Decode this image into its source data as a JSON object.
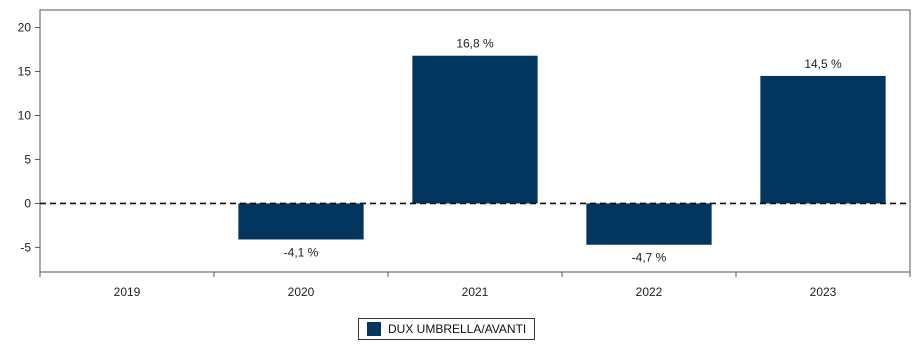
{
  "chart_data": {
    "type": "bar",
    "categories": [
      "2019",
      "2020",
      "2021",
      "2022",
      "2023"
    ],
    "series": [
      {
        "name": "DUX UMBRELLA/AVANTI",
        "values": [
          null,
          -4.1,
          16.8,
          -4.7,
          14.5
        ],
        "labels": [
          "",
          "-4,1 %",
          "16,8 %",
          "-4,7 %",
          "14,5 %"
        ]
      }
    ],
    "yticks": [
      -5,
      0,
      5,
      10,
      15,
      20
    ],
    "ytick_labels": [
      "-5",
      "0",
      "5",
      "10",
      "15",
      "20"
    ],
    "ylim": [
      -7.8,
      22
    ],
    "zero_line": "dashed",
    "legend_position": "bottom",
    "grid": false,
    "bar_color": "#02365f",
    "title": "",
    "xlabel": "",
    "ylabel": ""
  }
}
